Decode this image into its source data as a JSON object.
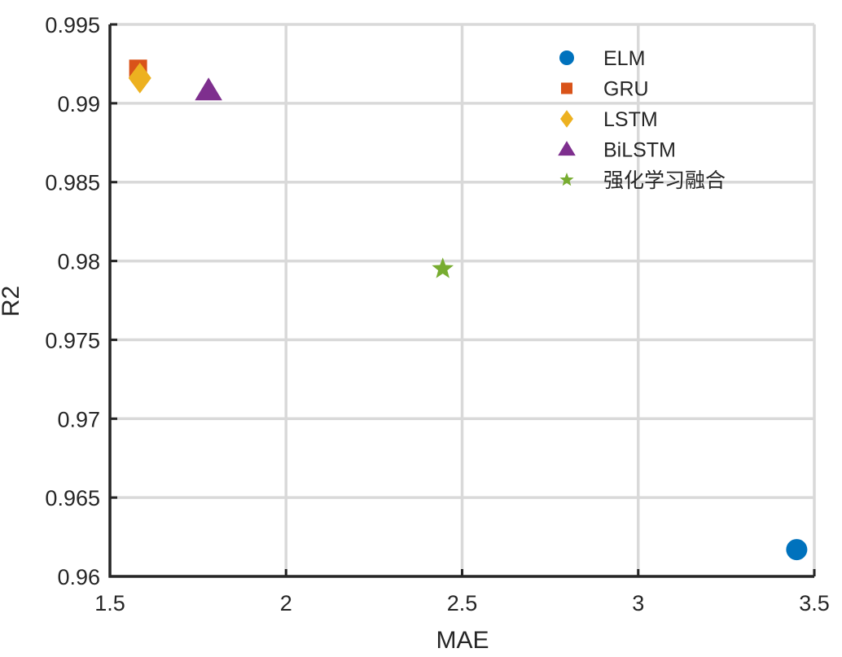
{
  "chart_data": {
    "type": "scatter",
    "title": "",
    "xlabel": "MAE",
    "ylabel": "R2",
    "xlim": [
      1.5,
      3.5
    ],
    "ylim": [
      0.96,
      0.995
    ],
    "xticks": [
      1.5,
      2,
      2.5,
      3,
      3.5
    ],
    "xtick_labels": [
      "1.5",
      "2",
      "2.5",
      "3",
      "3.5"
    ],
    "yticks": [
      0.96,
      0.965,
      0.97,
      0.975,
      0.98,
      0.985,
      0.99,
      0.995
    ],
    "ytick_labels": [
      "0.96",
      "0.965",
      "0.97",
      "0.975",
      "0.98",
      "0.985",
      "0.99",
      "0.995"
    ],
    "grid": true,
    "legend_position": "top-right",
    "series": [
      {
        "name": "ELM",
        "marker": "circle",
        "color": "#0072BD",
        "x": 3.45,
        "y": 0.9617
      },
      {
        "name": "GRU",
        "marker": "square",
        "color": "#D95319",
        "x": 1.58,
        "y": 0.9922
      },
      {
        "name": "LSTM",
        "marker": "diamond",
        "color": "#EDB120",
        "x": 1.585,
        "y": 0.9916
      },
      {
        "name": "BiLSTM",
        "marker": "triangle",
        "color": "#7E2F8E",
        "x": 1.78,
        "y": 0.9908
      },
      {
        "name": "强化学习融合",
        "marker": "star",
        "color": "#77AC30",
        "x": 2.445,
        "y": 0.9795
      }
    ]
  }
}
